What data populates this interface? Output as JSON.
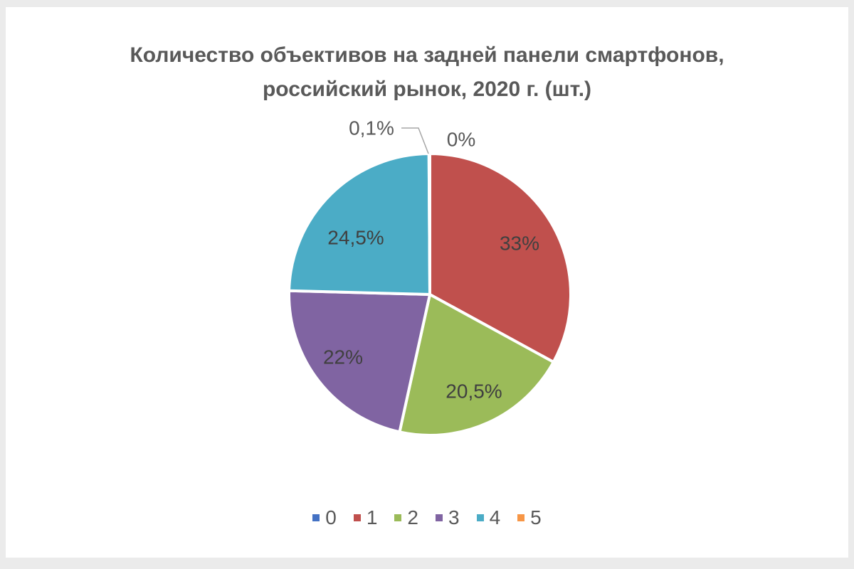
{
  "chart_data": {
    "type": "pie",
    "title_lines": [
      "Количество объективов на задней панели смартфонов,",
      "российский рынок, 2020 г. (шт.)"
    ],
    "slices": [
      {
        "category": "0",
        "value": 0,
        "label": "0%",
        "color": "#4472c4"
      },
      {
        "category": "1",
        "value": 33,
        "label": "33%",
        "color": "#c0504d"
      },
      {
        "category": "2",
        "value": 20.5,
        "label": "20,5%",
        "color": "#9bbb59"
      },
      {
        "category": "3",
        "value": 22,
        "label": "22%",
        "color": "#8064a2"
      },
      {
        "category": "4",
        "value": 24.5,
        "label": "24,5%",
        "color": "#4bacc6"
      },
      {
        "category": "5",
        "value": 0.1,
        "label": "0,1%",
        "color": "#f79646"
      }
    ],
    "legend_position": "bottom"
  }
}
